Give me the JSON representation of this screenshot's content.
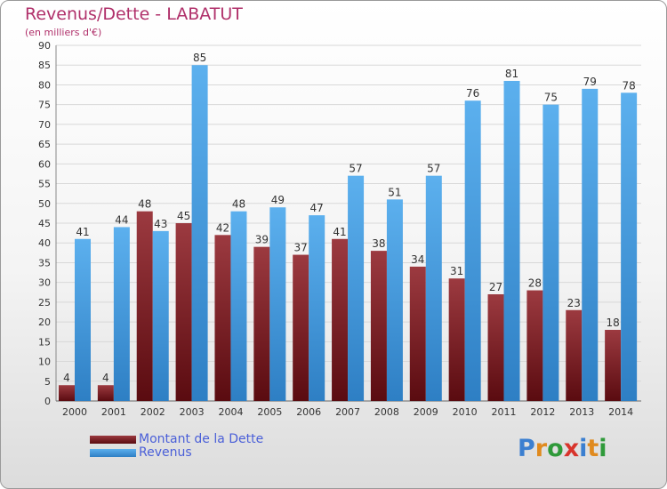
{
  "page": {
    "title": "Revenus/Dette - LABATUT",
    "subtitle": "(en milliers d'€)"
  },
  "chart_data": {
    "type": "bar",
    "categories": [
      "2000",
      "2001",
      "2002",
      "2003",
      "2004",
      "2005",
      "2006",
      "2007",
      "2008",
      "2009",
      "2010",
      "2011",
      "2012",
      "2013",
      "2014"
    ],
    "series": [
      {
        "name": "Montant de la Dette",
        "values": [
          4,
          4,
          48,
          45,
          42,
          39,
          37,
          41,
          38,
          34,
          31,
          27,
          28,
          23,
          18
        ],
        "color": "#7b1a1f"
      },
      {
        "name": "Revenus",
        "values": [
          41,
          44,
          43,
          85,
          48,
          49,
          47,
          57,
          51,
          57,
          76,
          81,
          75,
          79,
          78
        ],
        "color": "#4a9ee0"
      }
    ],
    "title": "Revenus/Dette - LABATUT",
    "ylabel": "",
    "xlabel": "",
    "ylim": [
      0,
      90
    ],
    "ytick_step": 5,
    "grid": true,
    "legend_position": "bottom-left"
  },
  "logo": {
    "text": "Proxiti",
    "colors": [
      "#3b7fd0",
      "#e08a1e",
      "#2f9a3a",
      "#d8342c",
      "#3b7fd0",
      "#e08a1e",
      "#2f9a3a"
    ]
  }
}
